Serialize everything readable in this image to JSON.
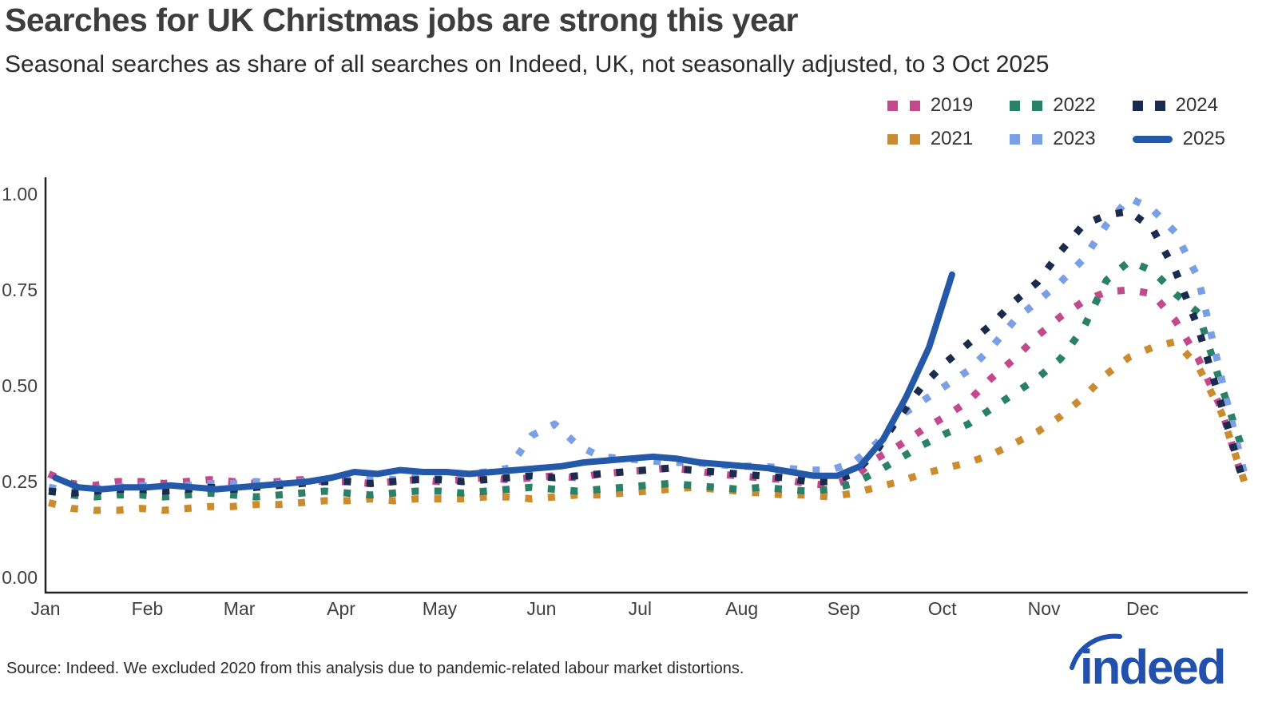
{
  "header": {
    "title": "Searches for UK Christmas jobs are strong this year",
    "subtitle": "Seasonal searches as share of all searches on Indeed, UK, not seasonally adjusted, to 3 Oct 2025"
  },
  "legend": {
    "items": [
      {
        "label": "2019",
        "color": "#c2498b",
        "style": "dotted"
      },
      {
        "label": "2022",
        "color": "#2a8168",
        "style": "dotted"
      },
      {
        "label": "2024",
        "color": "#1b2b4d",
        "style": "dotted"
      },
      {
        "label": "2021",
        "color": "#cb8c30",
        "style": "dotted"
      },
      {
        "label": "2023",
        "color": "#7b9fe4",
        "style": "dotted"
      },
      {
        "label": "2025",
        "color": "#2458a9",
        "style": "solid"
      }
    ]
  },
  "chart_data": {
    "type": "line",
    "title": "Searches for UK Christmas jobs are strong this year",
    "xlabel": "",
    "ylabel": "",
    "x_unit": "day_of_year",
    "ylim": [
      0,
      1.05
    ],
    "grid": false,
    "legend_position": "top-right",
    "yticks": [
      {
        "value": 0.0,
        "label": "0.00"
      },
      {
        "value": 0.25,
        "label": "0.25"
      },
      {
        "value": 0.5,
        "label": "0.50"
      },
      {
        "value": 0.75,
        "label": "0.75"
      },
      {
        "value": 1.0,
        "label": "1.00"
      }
    ],
    "months": [
      "Jan",
      "Feb",
      "Mar",
      "Apr",
      "May",
      "Jun",
      "Jul",
      "Aug",
      "Sep",
      "Oct",
      "Nov",
      "Dec"
    ],
    "month_start_days": [
      0,
      31,
      59,
      90,
      120,
      151,
      181,
      212,
      243,
      273,
      304,
      334
    ],
    "series": [
      {
        "name": "2019",
        "color": "#c2498b",
        "style": "dotted",
        "day_start": 1,
        "day_step": 7,
        "values": [
          0.27,
          0.245,
          0.24,
          0.25,
          0.25,
          0.245,
          0.25,
          0.255,
          0.25,
          0.245,
          0.25,
          0.255,
          0.25,
          0.25,
          0.245,
          0.25,
          0.255,
          0.25,
          0.255,
          0.26,
          0.255,
          0.26,
          0.265,
          0.26,
          0.27,
          0.275,
          0.28,
          0.285,
          0.28,
          0.27,
          0.265,
          0.26,
          0.255,
          0.245,
          0.24,
          0.26,
          0.31,
          0.345,
          0.385,
          0.42,
          0.46,
          0.52,
          0.57,
          0.63,
          0.68,
          0.72,
          0.745,
          0.75,
          0.74,
          0.67,
          0.57,
          0.44,
          0.24
        ]
      },
      {
        "name": "2021",
        "color": "#cb8c30",
        "style": "dotted",
        "day_start": 1,
        "day_step": 7,
        "values": [
          0.195,
          0.18,
          0.175,
          0.175,
          0.18,
          0.175,
          0.18,
          0.185,
          0.185,
          0.19,
          0.19,
          0.195,
          0.2,
          0.2,
          0.205,
          0.2,
          0.205,
          0.205,
          0.205,
          0.21,
          0.21,
          0.205,
          0.21,
          0.215,
          0.215,
          0.22,
          0.225,
          0.23,
          0.235,
          0.23,
          0.225,
          0.22,
          0.215,
          0.215,
          0.21,
          0.22,
          0.235,
          0.25,
          0.27,
          0.285,
          0.3,
          0.32,
          0.35,
          0.38,
          0.42,
          0.47,
          0.53,
          0.575,
          0.6,
          0.615,
          0.55,
          0.43,
          0.25
        ]
      },
      {
        "name": "2022",
        "color": "#2a8168",
        "style": "dotted",
        "day_start": 1,
        "day_step": 7,
        "values": [
          0.225,
          0.215,
          0.21,
          0.215,
          0.215,
          0.21,
          0.215,
          0.22,
          0.215,
          0.21,
          0.215,
          0.22,
          0.225,
          0.22,
          0.215,
          0.22,
          0.225,
          0.225,
          0.22,
          0.225,
          0.23,
          0.235,
          0.23,
          0.225,
          0.23,
          0.235,
          0.24,
          0.245,
          0.24,
          0.235,
          0.23,
          0.235,
          0.23,
          0.225,
          0.23,
          0.245,
          0.275,
          0.31,
          0.345,
          0.375,
          0.4,
          0.44,
          0.48,
          0.52,
          0.57,
          0.65,
          0.775,
          0.825,
          0.8,
          0.74,
          0.69,
          0.5,
          0.32
        ]
      },
      {
        "name": "2023",
        "color": "#7b9fe4",
        "style": "dotted",
        "day_start": 1,
        "day_step": 7,
        "values": [
          0.235,
          0.225,
          0.23,
          0.235,
          0.24,
          0.235,
          0.24,
          0.245,
          0.245,
          0.25,
          0.245,
          0.25,
          0.255,
          0.255,
          0.26,
          0.255,
          0.26,
          0.265,
          0.27,
          0.275,
          0.285,
          0.37,
          0.4,
          0.345,
          0.315,
          0.31,
          0.305,
          0.3,
          0.3,
          0.295,
          0.29,
          0.29,
          0.285,
          0.28,
          0.28,
          0.3,
          0.35,
          0.42,
          0.46,
          0.5,
          0.54,
          0.6,
          0.67,
          0.72,
          0.77,
          0.83,
          0.92,
          0.99,
          0.96,
          0.9,
          0.78,
          0.52,
          0.27
        ]
      },
      {
        "name": "2024",
        "color": "#1b2b4d",
        "style": "dotted",
        "day_start": 1,
        "day_step": 7,
        "values": [
          0.225,
          0.22,
          0.225,
          0.23,
          0.23,
          0.225,
          0.23,
          0.235,
          0.23,
          0.235,
          0.24,
          0.245,
          0.25,
          0.25,
          0.245,
          0.25,
          0.255,
          0.255,
          0.25,
          0.255,
          0.26,
          0.265,
          0.26,
          0.265,
          0.27,
          0.275,
          0.28,
          0.285,
          0.28,
          0.275,
          0.27,
          0.265,
          0.26,
          0.25,
          0.25,
          0.27,
          0.33,
          0.42,
          0.5,
          0.56,
          0.61,
          0.66,
          0.72,
          0.77,
          0.85,
          0.92,
          0.945,
          0.955,
          0.91,
          0.8,
          0.65,
          0.45,
          0.24
        ]
      },
      {
        "name": "2025",
        "color": "#2458a9",
        "style": "solid",
        "day_start": 3,
        "day_step": 7,
        "values": [
          0.26,
          0.235,
          0.23,
          0.235,
          0.235,
          0.24,
          0.235,
          0.23,
          0.235,
          0.24,
          0.245,
          0.25,
          0.26,
          0.275,
          0.27,
          0.28,
          0.275,
          0.275,
          0.27,
          0.275,
          0.28,
          0.285,
          0.29,
          0.3,
          0.305,
          0.31,
          0.315,
          0.31,
          0.3,
          0.295,
          0.29,
          0.285,
          0.275,
          0.265,
          0.265,
          0.29,
          0.36,
          0.47,
          0.6,
          0.79
        ]
      }
    ]
  },
  "footer": {
    "source": "Source: Indeed. We excluded 2020 from this analysis due to pandemic-related labour market distortions.",
    "logo_text": "indeed",
    "logo_color": "#2151ad"
  }
}
